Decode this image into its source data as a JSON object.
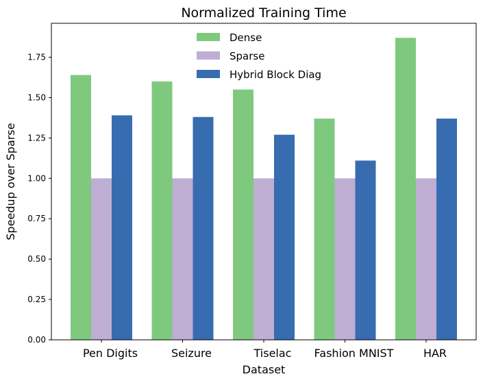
{
  "chart_data": {
    "type": "bar",
    "title": "Normalized Training Time",
    "xlabel": "Dataset",
    "ylabel": "Speedup over Sparse",
    "categories": [
      "Pen Digits",
      "Seizure",
      "Tiselac",
      "Fashion MNIST",
      "HAR"
    ],
    "series": [
      {
        "name": "Dense",
        "color": "#7fc97f",
        "values": [
          1.64,
          1.6,
          1.55,
          1.37,
          1.87
        ]
      },
      {
        "name": "Sparse",
        "color": "#beaed4",
        "values": [
          1.0,
          1.0,
          1.0,
          1.0,
          1.0
        ]
      },
      {
        "name": "Hybrid Block Diag",
        "color": "#386cb0",
        "values": [
          1.39,
          1.38,
          1.27,
          1.11,
          1.37
        ]
      }
    ],
    "ylim": [
      0,
      1.96
    ],
    "yticks": [
      "0.00",
      "0.25",
      "0.50",
      "0.75",
      "1.00",
      "1.25",
      "1.50",
      "1.75"
    ],
    "grid": false,
    "legend_position": "top-center"
  }
}
